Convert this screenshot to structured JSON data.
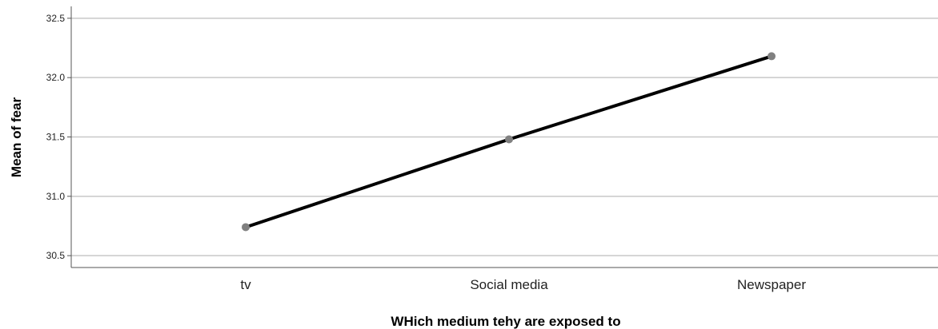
{
  "chart_data": {
    "type": "line",
    "categories": [
      "tv",
      "Social media",
      "Newspaper"
    ],
    "series": [
      {
        "values": [
          30.74,
          31.48,
          32.18
        ]
      }
    ],
    "xlabel": "WHich medium tehy are exposed to",
    "ylabel": "Mean of fear",
    "ylim": [
      30.4,
      32.6
    ],
    "yticks": [
      "30.5",
      "31.0",
      "31.5",
      "32.0",
      "32.5"
    ],
    "grid": true,
    "colors": {
      "line": "#000000",
      "marker": "#808080",
      "grid": "#c8c8c8",
      "axis": "#555555"
    }
  }
}
